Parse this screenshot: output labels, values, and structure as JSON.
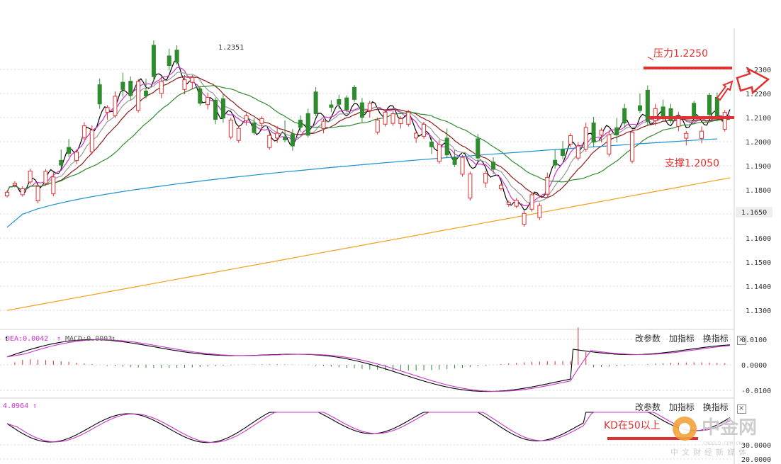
{
  "chart_data": [
    {
      "type": "candlestick",
      "panel": "price",
      "y_ticks": [
        "1.2300",
        "1.2200",
        "1.2100",
        "1.2000",
        "1.1900",
        "1.1800",
        "1.1700",
        "1.1600",
        "1.1500",
        "1.1400",
        "1.1300"
      ],
      "ylim": [
        1.123,
        1.247
      ],
      "current_price_label": "1.1650",
      "high_marker": {
        "label": "1.2351",
        "value": 1.2351,
        "bar_index": 83
      },
      "n_bars": 282,
      "candles_ohlc": [
        [
          1.1845,
          1.1868,
          1.1838,
          1.186
        ],
        [
          1.1862,
          1.1878,
          1.1852,
          1.187
        ],
        [
          1.187,
          1.1905,
          1.1862,
          1.1895
        ],
        [
          1.1895,
          1.195,
          1.1885,
          1.194
        ],
        [
          1.194,
          1.201,
          1.193,
          1.2
        ],
        [
          1.2,
          1.206,
          1.199,
          1.205
        ],
        [
          1.205,
          1.214,
          1.204,
          1.212
        ],
        [
          1.212,
          1.2165,
          1.2085,
          1.21
        ],
        [
          1.21,
          1.2135,
          1.206,
          1.2075
        ],
        [
          1.2075,
          1.212,
          1.206,
          1.211
        ],
        [
          1.211,
          1.2175,
          1.21,
          1.216
        ],
        [
          1.216,
          1.227,
          1.215,
          1.225
        ],
        [
          1.225,
          1.2275,
          1.215,
          1.217
        ],
        [
          1.217,
          1.22,
          1.214,
          1.219
        ],
        [
          1.219,
          1.229,
          1.218,
          1.227
        ],
        [
          1.227,
          1.231,
          1.221,
          1.224
        ],
        [
          1.224,
          1.226,
          1.216,
          1.218
        ],
        [
          1.218,
          1.231,
          1.217,
          1.23
        ],
        [
          1.23,
          1.2351,
          1.227,
          1.228
        ],
        [
          1.228,
          1.23,
          1.213,
          1.215
        ],
        [
          1.215,
          1.222,
          1.213,
          1.22
        ],
        [
          1.22,
          1.223,
          1.214,
          1.216
        ],
        [
          1.216,
          1.218,
          1.21,
          1.211
        ],
        [
          1.211,
          1.217,
          1.209,
          1.215
        ],
        [
          1.215,
          1.218,
          1.212,
          1.217
        ],
        [
          1.217,
          1.218,
          1.21,
          1.211
        ],
        [
          1.211,
          1.216,
          1.209,
          1.214
        ],
        [
          1.214,
          1.215,
          1.204,
          1.206
        ],
        [
          1.206,
          1.208,
          1.196,
          1.198
        ],
        [
          1.198,
          1.206,
          1.197,
          1.205
        ],
        [
          1.205,
          1.211,
          1.204,
          1.21
        ],
        [
          1.21,
          1.213,
          1.208,
          1.212
        ],
        [
          1.212,
          1.214,
          1.207,
          1.208
        ],
        [
          1.208,
          1.211,
          1.205,
          1.21
        ],
        [
          1.21,
          1.216,
          1.209,
          1.215
        ],
        [
          1.215,
          1.22,
          1.213,
          1.217
        ],
        [
          1.217,
          1.224,
          1.215,
          1.216
        ],
        [
          1.216,
          1.218,
          1.209,
          1.211
        ],
        [
          1.211,
          1.213,
          1.206,
          1.208
        ],
        [
          1.208,
          1.21,
          1.198,
          1.199
        ],
        [
          1.199,
          1.201,
          1.189,
          1.19
        ],
        [
          1.19,
          1.194,
          1.188,
          1.193
        ],
        [
          1.193,
          1.195,
          1.19,
          1.192
        ],
        [
          1.192,
          1.194,
          1.188,
          1.19
        ],
        [
          1.19,
          1.191,
          1.184,
          1.185
        ],
        [
          1.185,
          1.186,
          1.179,
          1.18
        ],
        [
          1.18,
          1.182,
          1.172,
          1.174
        ],
        [
          1.174,
          1.178,
          1.171,
          1.177
        ],
        [
          1.177,
          1.183,
          1.176,
          1.182
        ],
        [
          1.182,
          1.188,
          1.181,
          1.187
        ],
        [
          1.187,
          1.192,
          1.186,
          1.191
        ],
        [
          1.191,
          1.194,
          1.189,
          1.193
        ],
        [
          1.193,
          1.199,
          1.192,
          1.198
        ],
        [
          1.198,
          1.201,
          1.196,
          1.2
        ],
        [
          1.2,
          1.206,
          1.199,
          1.205
        ],
        [
          1.205,
          1.207,
          1.2,
          1.203
        ],
        [
          1.203,
          1.212,
          1.202,
          1.21
        ],
        [
          1.21,
          1.214,
          1.202,
          1.203
        ],
        [
          1.203,
          1.206,
          1.199,
          1.2
        ],
        [
          1.2,
          1.208,
          1.199,
          1.207
        ],
        [
          1.207,
          1.218,
          1.206,
          1.217
        ],
        [
          1.217,
          1.219,
          1.208,
          1.209
        ],
        [
          1.209,
          1.214,
          1.207,
          1.213
        ],
        [
          1.213,
          1.215,
          1.208,
          1.21
        ]
      ],
      "lines": [
        {
          "name": "MA5",
          "color": "#000000"
        },
        {
          "name": "MA10",
          "color": "#cc33cc"
        },
        {
          "name": "MA20",
          "color": "#999999"
        },
        {
          "name": "MA30",
          "color": "#8b1a1a"
        },
        {
          "name": "MA60",
          "color": "#2e8b2e"
        },
        {
          "name": "MA120",
          "color": "#1e90d0"
        },
        {
          "name": "MA250",
          "color": "#f0a020"
        }
      ],
      "ma250_endpoints": [
        1.13,
        1.185
      ],
      "ma120_endpoints": [
        1.1645,
        1.2015
      ],
      "annotations": {
        "resistance_label": "压力1.2250",
        "resistance_level": 1.225,
        "support_label": "支撑1.2050",
        "support_level": 1.205,
        "color": "#e03030"
      }
    },
    {
      "type": "macd",
      "panel": "macd",
      "label_dea": "DEA:0.0042",
      "label_macd": "MACD:0.0003",
      "y_ticks": [
        "0.0100",
        "0.0000",
        "-0.0100"
      ],
      "ylim": [
        -0.0125,
        0.0125
      ]
    },
    {
      "type": "kd",
      "panel": "kd",
      "label_value": "4.0964",
      "y_ticks": [
        "30.0000",
        "20.0000"
      ],
      "annotation": "KD在50以上"
    }
  ],
  "controls": {
    "modify": "改参数",
    "add": "加指标",
    "switch": "换指标",
    "close": "×"
  },
  "watermark": {
    "brand": "中金网",
    "site": "CNGOLD.COM.CN",
    "slogan": "中文财经新媒体"
  },
  "colors": {
    "up": "#e03030",
    "down": "#2e8b2e",
    "grid": "#d8d8d8",
    "dif": "#000000",
    "dea": "#cc33cc"
  }
}
